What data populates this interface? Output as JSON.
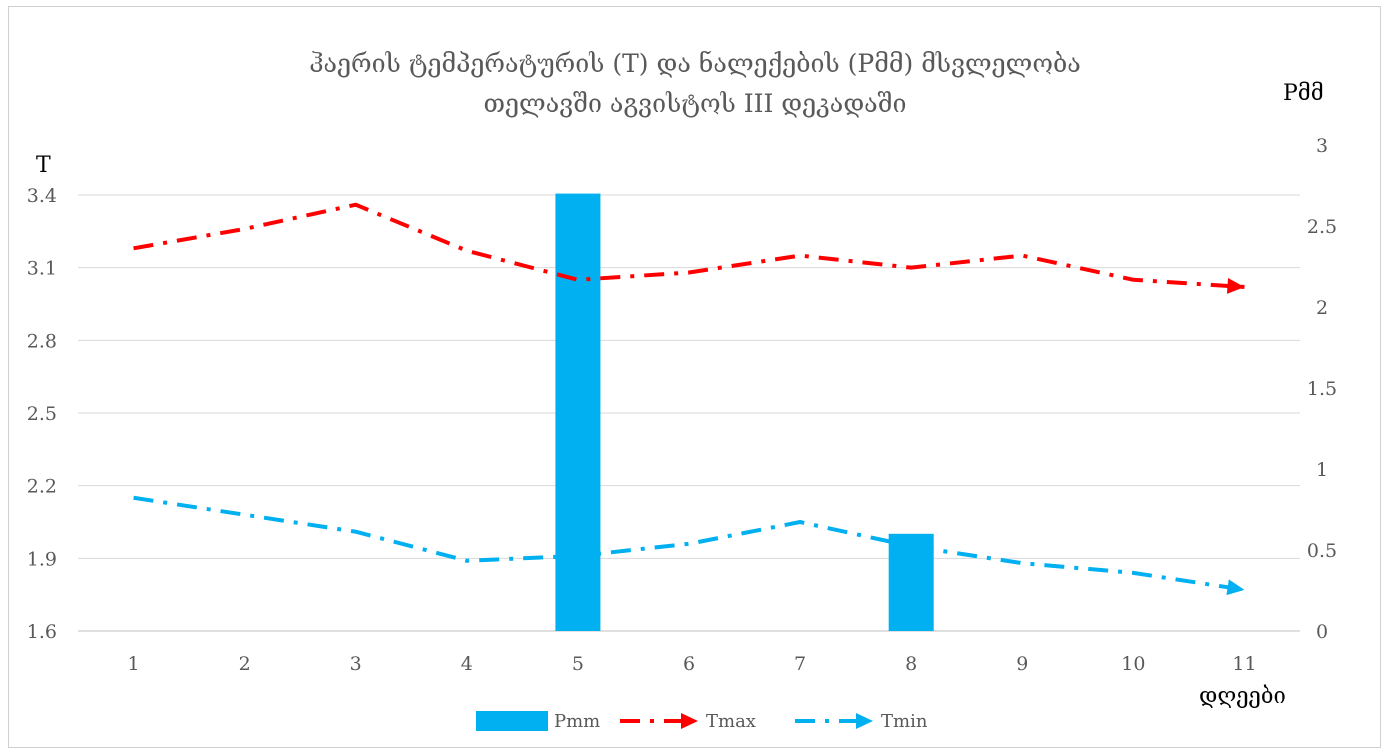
{
  "chart_data": {
    "type": "bar+line",
    "title_line1": "ჰაერის ტემპერატურის (T) და ნალექების (Pმმ)  მსვლელობა",
    "title_line2": "თელავში აგვისტოს III დეკადაში",
    "xlabel": "დღეები",
    "ylabel_left": "T",
    "ylabel_right": "Pმმ",
    "categories": [
      "1",
      "2",
      "3",
      "4",
      "5",
      "6",
      "7",
      "8",
      "9",
      "10",
      "11"
    ],
    "y_left": {
      "min": 1.6,
      "max": 3.4,
      "ticks": [
        "1.6",
        "1.9",
        "2.2",
        "2.5",
        "2.8",
        "3.1",
        "3.4"
      ],
      "tick_values": [
        1.6,
        1.9,
        2.2,
        2.5,
        2.8,
        3.1,
        3.4
      ]
    },
    "y_right": {
      "min": 0,
      "max": 3,
      "ticks": [
        "0",
        "0.5",
        "1",
        "1.5",
        "2",
        "2.5",
        "3"
      ],
      "tick_values": [
        0,
        0.5,
        1,
        1.5,
        2,
        2.5,
        3
      ]
    },
    "series": [
      {
        "name": "Pmm",
        "kind": "bar",
        "axis": "right",
        "color": "#00b0f0",
        "values": [
          0,
          0,
          0,
          0,
          2.7,
          0,
          0,
          0.6,
          0,
          0,
          0
        ]
      },
      {
        "name": "Tmax",
        "kind": "line",
        "axis": "left",
        "color": "#ff0000",
        "values": [
          3.18,
          3.26,
          3.36,
          3.17,
          3.05,
          3.08,
          3.15,
          3.1,
          3.15,
          3.05,
          3.02
        ]
      },
      {
        "name": "Tmin",
        "kind": "line",
        "axis": "left",
        "color": "#00b0f0",
        "values": [
          2.15,
          2.08,
          2.01,
          1.89,
          1.91,
          1.96,
          2.05,
          1.95,
          1.88,
          1.84,
          1.77
        ]
      }
    ],
    "legend_position": "bottom",
    "grid": true
  }
}
